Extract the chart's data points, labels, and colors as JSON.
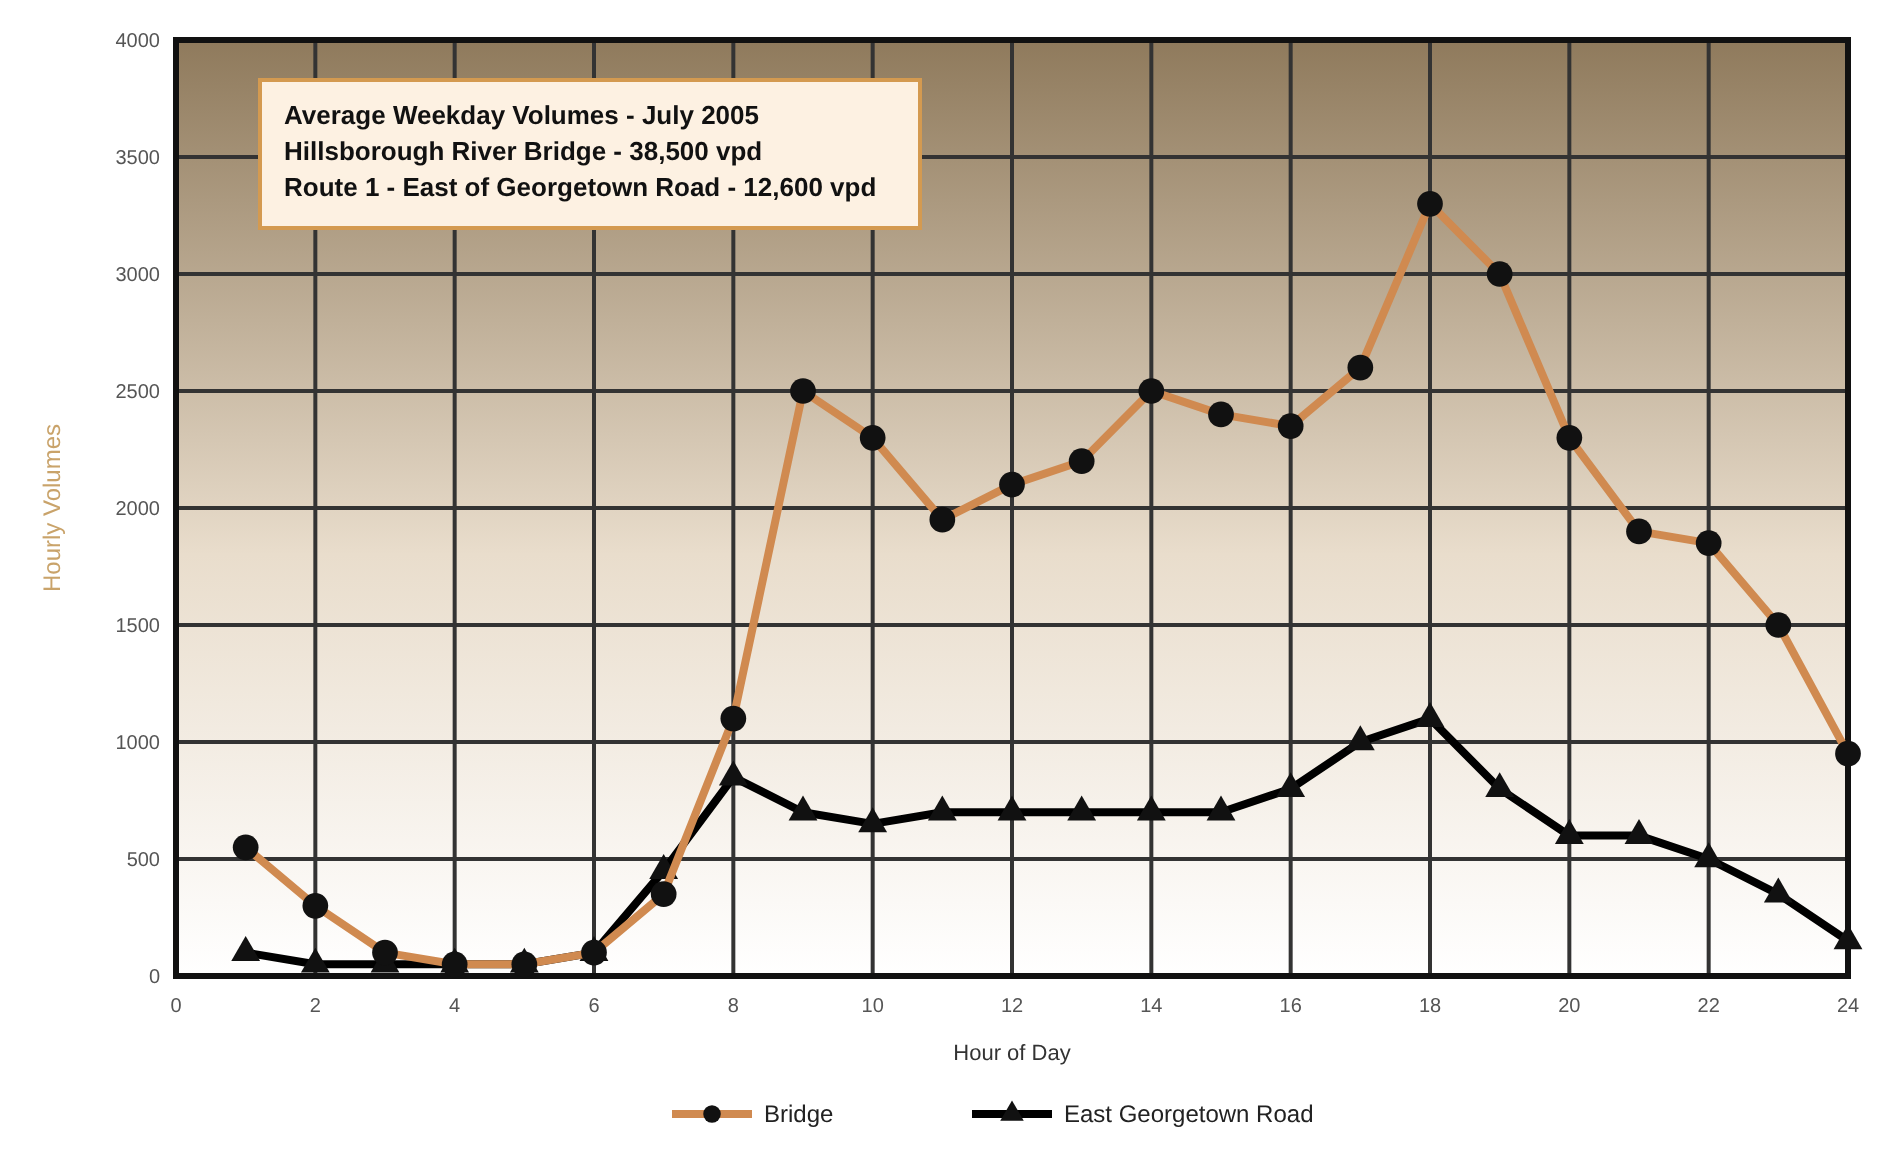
{
  "chart_data": {
    "type": "line",
    "xlabel": "Hour of Day",
    "ylabel": "Hourly Volumes",
    "annotations": [
      "Average Weekday Volumes - July 2005",
      "Hillsborough River Bridge - 38,500 vpd",
      "Route 1 - East of Georgetown Road - 12,600 vpd"
    ],
    "x": [
      1,
      2,
      3,
      4,
      5,
      6,
      7,
      8,
      9,
      10,
      11,
      12,
      13,
      14,
      15,
      16,
      17,
      18,
      19,
      20,
      21,
      22,
      23,
      24
    ],
    "series": [
      {
        "name": "Bridge",
        "color": "#d08a50",
        "marker": "circle",
        "values": [
          550,
          300,
          100,
          50,
          50,
          100,
          350,
          1100,
          2500,
          2300,
          1950,
          2100,
          2200,
          2500,
          2400,
          2350,
          2600,
          3300,
          3000,
          2300,
          1900,
          1850,
          1500,
          950
        ]
      },
      {
        "name": "East Georgetown Road",
        "color": "#000000",
        "marker": "triangle",
        "values": [
          100,
          50,
          50,
          50,
          50,
          100,
          450,
          850,
          700,
          650,
          700,
          700,
          700,
          700,
          700,
          800,
          1000,
          1100,
          800,
          600,
          600,
          500,
          350,
          150
        ]
      }
    ],
    "xlim": [
      0,
      24
    ],
    "xticks": [
      0,
      2,
      4,
      6,
      8,
      10,
      12,
      14,
      16,
      18,
      20,
      22,
      24
    ],
    "ylim": [
      0,
      4000
    ],
    "yticks": [
      0,
      500,
      1000,
      1500,
      2000,
      2500,
      3000,
      3500,
      4000
    ],
    "grid": true,
    "legend": "bottom"
  }
}
